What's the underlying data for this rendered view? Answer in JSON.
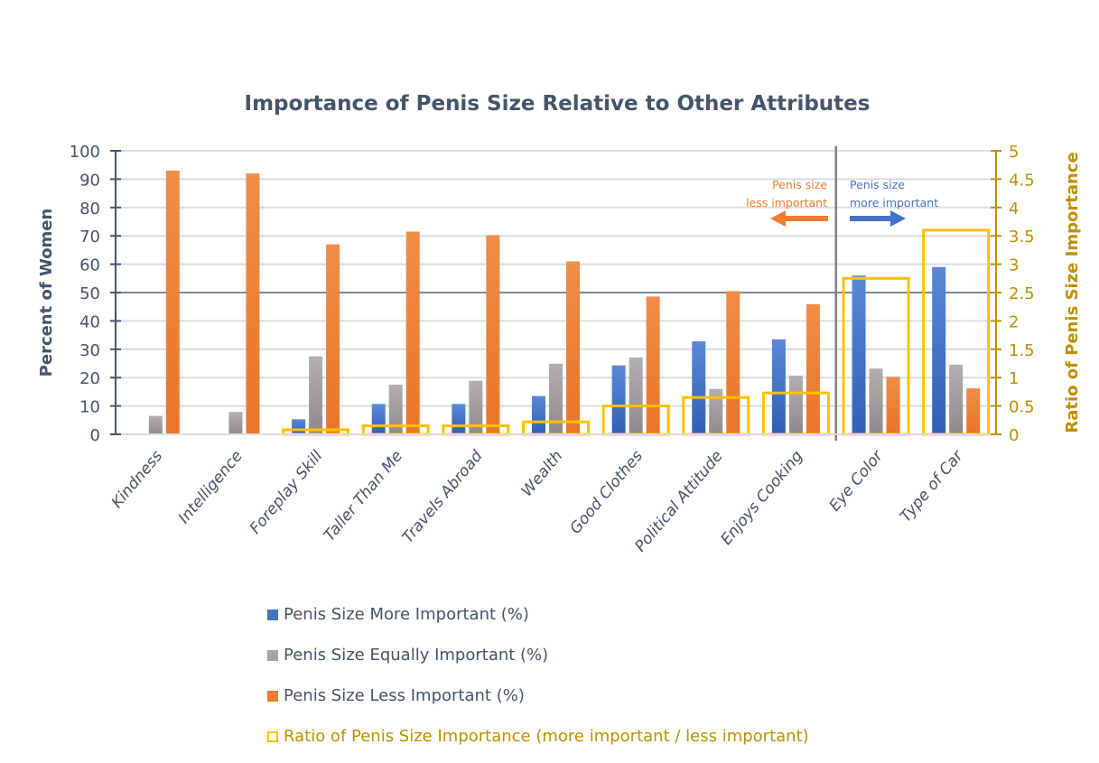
{
  "chart_data": {
    "type": "bar",
    "title": "Importance of Penis Size Relative to Other Attributes",
    "xlabel": "",
    "ylabel": "Percent of Women",
    "y2label": "Ratio of Penis Size Importance",
    "ylim": [
      0,
      100
    ],
    "y2lim": [
      0,
      5
    ],
    "yticks": [
      "0",
      "10",
      "20",
      "30",
      "40",
      "50",
      "60",
      "70",
      "80",
      "90",
      "100"
    ],
    "y2ticks": [
      "0",
      "0.5",
      "1",
      "1.5",
      "2",
      "2.5",
      "3",
      "3.5",
      "4",
      "4.5",
      "5"
    ],
    "grid": true,
    "reference_line_y": 50,
    "categories": [
      "Kindness",
      "Intelligence",
      "Foreplay Skill",
      "Taller Than Me",
      "Travels Abroad",
      "Wealth",
      "Good Clothes",
      "Political Attitude",
      "Enjoys Cooking",
      "Eye Color",
      "Type of Car"
    ],
    "series": [
      {
        "name": "Penis Size More Important (%)",
        "axis": "left",
        "kind": "bar",
        "color": "#4472c4",
        "values": [
          0,
          0,
          5.3,
          10.7,
          10.7,
          13.5,
          24.3,
          32.8,
          33.5,
          56.0,
          59.0
        ]
      },
      {
        "name": "Penis Size Equally Important (%)",
        "axis": "left",
        "kind": "bar",
        "color": "#a5a5a5",
        "values": [
          6.5,
          7.9,
          27.5,
          17.5,
          18.9,
          24.9,
          27.1,
          16.0,
          20.7,
          23.2,
          24.6
        ]
      },
      {
        "name": "Penis Size Less Important (%)",
        "axis": "left",
        "kind": "bar",
        "color": "#ed7d31",
        "values": [
          93.0,
          92.0,
          67.0,
          71.5,
          70.2,
          61.0,
          48.6,
          50.5,
          45.9,
          20.3,
          16.2
        ]
      },
      {
        "name": "Ratio of Penis Size Importance (more important / less important)",
        "axis": "right",
        "kind": "outline-bar",
        "color": "#ffc000",
        "values": [
          0,
          0,
          0.08,
          0.15,
          0.15,
          0.22,
          0.5,
          0.65,
          0.73,
          2.75,
          3.6
        ]
      }
    ],
    "divider_after_category": "Enjoys Cooking",
    "annotations": {
      "less": {
        "line1": "Penis size",
        "line2": "less important",
        "arrow": "left"
      },
      "more": {
        "line1": "Penis size",
        "line2": "more important",
        "arrow": "right"
      }
    },
    "legend_position": "bottom"
  },
  "colors": {
    "text": "#44546a",
    "accent_gold": "#bf9000",
    "grid": "#d9dde3",
    "ref_line": "#808895"
  }
}
